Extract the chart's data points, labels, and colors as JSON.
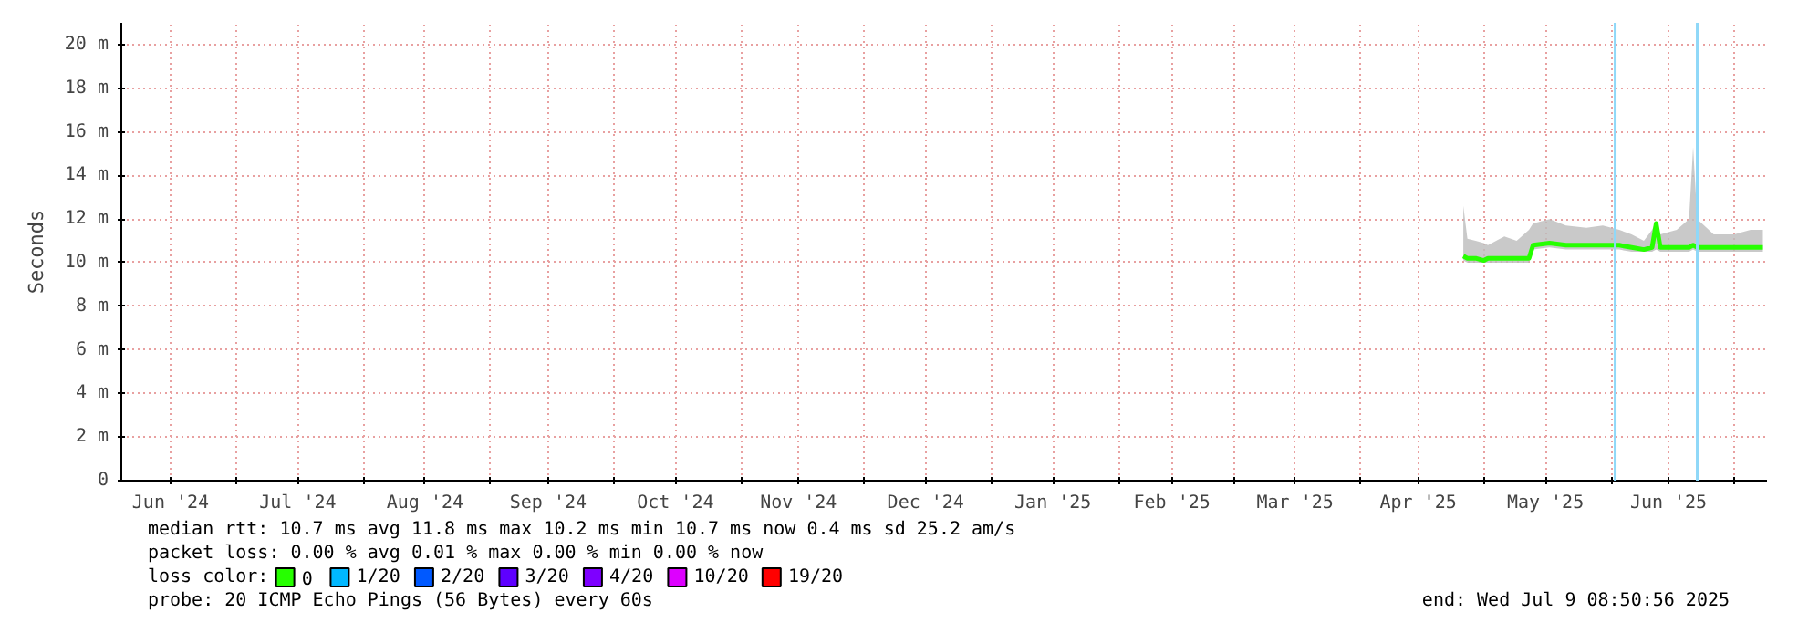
{
  "chart_data": {
    "type": "line",
    "ylabel": "Seconds",
    "xlim": [
      "2024-06-03",
      "2025-07-09"
    ],
    "xticks": [
      {
        "value": "2024-06-15",
        "label": "Jun '24"
      },
      {
        "value": "2024-07-16",
        "label": "Jul '24"
      },
      {
        "value": "2024-08-16",
        "label": "Aug '24"
      },
      {
        "value": "2024-09-15",
        "label": "Sep '24"
      },
      {
        "value": "2024-10-16",
        "label": "Oct '24"
      },
      {
        "value": "2024-11-15",
        "label": "Nov '24"
      },
      {
        "value": "2024-12-16",
        "label": "Dec '24"
      },
      {
        "value": "2025-01-16",
        "label": "Jan '25"
      },
      {
        "value": "2025-02-14",
        "label": "Feb '25"
      },
      {
        "value": "2025-03-16",
        "label": "Mar '25"
      },
      {
        "value": "2025-04-15",
        "label": "Apr '25"
      },
      {
        "value": "2025-05-16",
        "label": "May '25"
      },
      {
        "value": "2025-06-15",
        "label": "Jun '25"
      },
      {
        "value": "2024-07-01",
        "label": null
      },
      {
        "value": "2024-08-01",
        "label": null
      },
      {
        "value": "2024-09-01",
        "label": null
      },
      {
        "value": "2024-10-01",
        "label": null
      },
      {
        "value": "2024-11-01",
        "label": null
      },
      {
        "value": "2024-12-01",
        "label": null
      },
      {
        "value": "2025-01-01",
        "label": null
      },
      {
        "value": "2025-02-01",
        "label": null
      },
      {
        "value": "2025-03-01",
        "label": null
      },
      {
        "value": "2025-04-01",
        "label": null
      },
      {
        "value": "2025-05-01",
        "label": null
      },
      {
        "value": "2025-06-01",
        "label": null
      },
      {
        "value": "2025-07-01",
        "label": null
      }
    ],
    "ylim": [
      0,
      21
    ],
    "yticks": [
      0,
      {
        "value": 2,
        "label": "2 m"
      },
      {
        "value": 4,
        "label": "4 m"
      },
      {
        "value": 6,
        "label": "6 m"
      },
      {
        "value": 8,
        "label": "8 m"
      },
      {
        "value": 10,
        "label": "10 m"
      },
      {
        "value": 12,
        "label": "12 m"
      },
      {
        "value": 14,
        "label": "14 m"
      },
      {
        "value": 16,
        "label": "16 m"
      },
      {
        "value": 18,
        "label": "18 m"
      },
      {
        "value": 20,
        "label": "20 m"
      }
    ],
    "grid": true,
    "legend": "bottom",
    "legend_title": "loss color:",
    "series": [
      {
        "name": "0",
        "color": "#26ff00",
        "x": [
          "2025-04-26",
          "2025-04-27",
          "2025-04-29",
          "2025-05-01",
          "2025-05-02",
          "2025-05-06",
          "2025-05-09",
          "2025-05-12",
          "2025-05-13",
          "2025-05-17",
          "2025-05-21",
          "2025-05-26",
          "2025-05-30",
          "2025-06-03",
          "2025-06-06",
          "2025-06-09",
          "2025-06-11",
          "2025-06-12",
          "2025-06-13",
          "2025-06-17",
          "2025-06-20",
          "2025-06-21",
          "2025-06-22",
          "2025-06-26",
          "2025-07-01",
          "2025-07-05",
          "2025-07-08"
        ],
        "values": [
          10.3,
          10.2,
          10.2,
          10.1,
          10.2,
          10.2,
          10.2,
          10.2,
          10.8,
          10.9,
          10.8,
          10.8,
          10.8,
          10.8,
          10.7,
          10.6,
          10.7,
          11.8,
          10.7,
          10.7,
          10.7,
          10.8,
          10.7,
          10.7,
          10.7,
          10.7,
          10.7
        ],
        "lower": [
          10.1,
          10.0,
          10.0,
          10.0,
          10.0,
          10.0,
          10.0,
          10.0,
          10.6,
          10.7,
          10.6,
          10.6,
          10.6,
          10.6,
          10.5,
          10.5,
          10.5,
          10.6,
          10.5,
          10.5,
          10.5,
          10.6,
          10.5,
          10.5,
          10.5,
          10.5,
          10.5
        ],
        "upper": [
          12.6,
          11.1,
          11.0,
          10.9,
          10.8,
          11.2,
          11.0,
          11.5,
          11.8,
          12.0,
          11.7,
          11.6,
          11.7,
          11.5,
          11.3,
          11.0,
          11.5,
          11.9,
          11.3,
          11.5,
          12.0,
          15.3,
          12.0,
          11.3,
          11.3,
          11.5,
          11.5
        ]
      },
      {
        "name": "1/20",
        "color": "#00b8ff"
      },
      {
        "name": "2/20",
        "color": "#0059ff"
      },
      {
        "name": "3/20",
        "color": "#5e00ff"
      },
      {
        "name": "4/20",
        "color": "#7e00ff"
      },
      {
        "name": "10/20",
        "color": "#dd00ff"
      },
      {
        "name": "19/20",
        "color": "#ff0000"
      }
    ],
    "ref_lines": [
      {
        "axis": "x",
        "value": "2025-06-02",
        "label": null,
        "color": "#8fd8f8"
      },
      {
        "axis": "x",
        "value": "2025-06-22",
        "label": null,
        "color": "#8fd8f8"
      }
    ],
    "annotations": [
      "median rtt:  10.7 ms avg  11.8 ms max  10.2 ms min  10.7 ms now  0.4 ms sd  25.2   am/s",
      "packet loss: 0.00 % avg  0.01 % max  0.00 % min  0.00 % now",
      "probe:       20 ICMP Echo Pings (56 Bytes) every 60s",
      "end: Wed Jul  9 08:50:56 2025"
    ]
  }
}
